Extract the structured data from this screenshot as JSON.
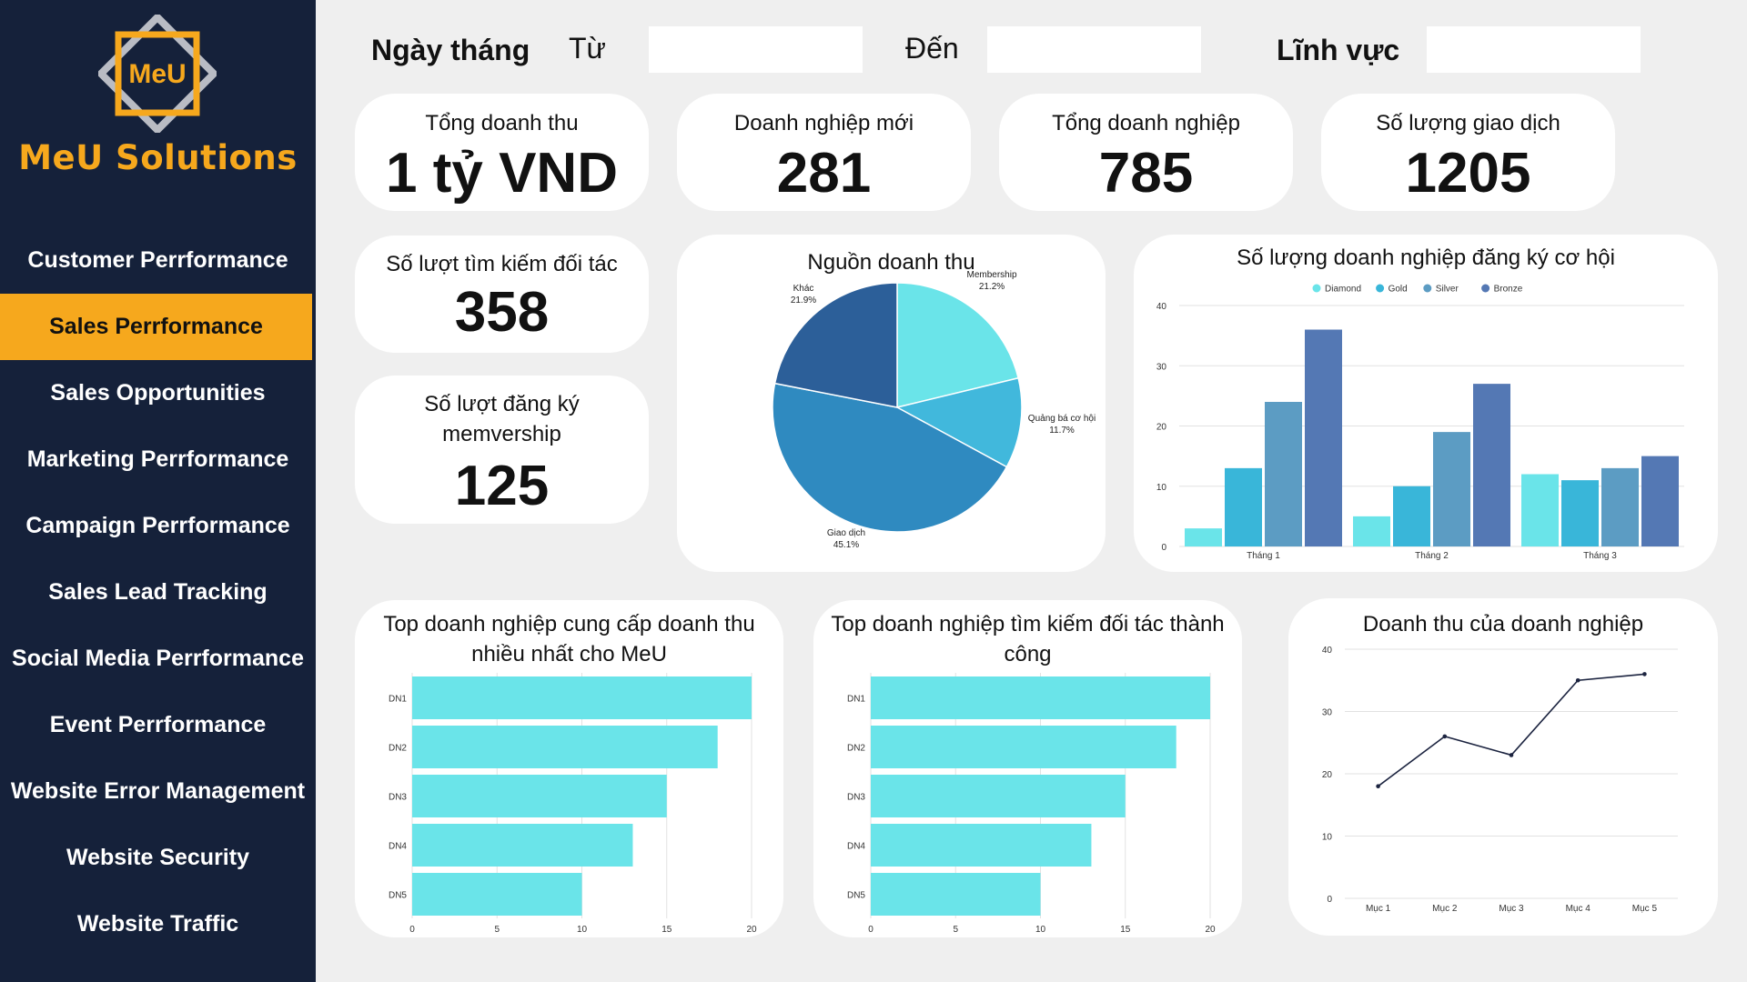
{
  "brand": {
    "name": "MeU Solutions",
    "logo_text": "MeU"
  },
  "nav": {
    "items": [
      "Customer Perrformance",
      "Sales Perrformance",
      "Sales Opportunities",
      "Marketing Perrformance",
      "Campaign Perrformance",
      "Sales Lead Tracking",
      "Social Media Perrformance",
      "Event Perrformance",
      "Website Error Management",
      "Website Security",
      "Website Traffic"
    ],
    "active_index": 1
  },
  "filters": {
    "date_label": "Ngày tháng",
    "from_label": "Từ",
    "from_value": "",
    "to_label": "Đến",
    "to_value": "",
    "field_label": "Lĩnh vực",
    "field_value": ""
  },
  "kpis": {
    "total_revenue": {
      "label": "Tổng doanh thu",
      "value": "1 tỷ VND"
    },
    "new_business": {
      "label": "Doanh nghiệp mới",
      "value": "281"
    },
    "total_business": {
      "label": "Tổng doanh nghiệp",
      "value": "785"
    },
    "transactions": {
      "label": "Số lượng giao dịch",
      "value": "1205"
    },
    "partner_searches": {
      "label": "Số lượt tìm kiếm đối tác",
      "value": "358"
    },
    "membership_signups": {
      "label_line1": "Số lượt đăng ký",
      "label_line2": "memvership",
      "value": "125"
    }
  },
  "colors": {
    "sidebar": "#15213a",
    "accent": "#f6a81d",
    "cyan": "#6ae4e9",
    "diamond": "#6ae4e9",
    "gold": "#39b6d9",
    "silver": "#5c9cc3",
    "bronze": "#5478b4"
  },
  "chart_data": [
    {
      "type": "pie",
      "title": "Nguồn doanh thu",
      "slices": [
        {
          "label": "Membership",
          "value": 21.2,
          "display": "21.2%",
          "color": "#6ae4e9"
        },
        {
          "label": "Quảng bá cơ hội",
          "value": 11.7,
          "display": "11.7%",
          "color": "#41b8dc"
        },
        {
          "label": "Giao dịch",
          "value": 45.1,
          "display": "45.1%",
          "color": "#2f8ac0"
        },
        {
          "label": "Khác",
          "value": 21.9,
          "display": "21.9%",
          "color": "#2c5f99"
        }
      ]
    },
    {
      "type": "bar",
      "title": "Số lượng doanh nghiệp đăng ký cơ hội",
      "categories": [
        "Tháng 1",
        "Tháng 2",
        "Tháng 3"
      ],
      "series": [
        {
          "name": "Diamond",
          "values": [
            3,
            5,
            12
          ]
        },
        {
          "name": "Gold",
          "values": [
            13,
            10,
            11
          ]
        },
        {
          "name": "Silver",
          "values": [
            24,
            19,
            13
          ]
        },
        {
          "name": "Bronze",
          "values": [
            36,
            27,
            15
          ]
        }
      ],
      "ylim": [
        0,
        40
      ],
      "yticks": [
        "0",
        "10",
        "20",
        "30",
        "40"
      ],
      "grid": true,
      "legend": "top"
    },
    {
      "type": "bar",
      "orientation": "horizontal",
      "title": "Top doanh nghiệp cung cấp doanh thu nhiều nhất cho MeU",
      "title_line1": "Top doanh nghiệp cung cấp doanh thu",
      "title_line2": "nhiều nhất cho MeU",
      "categories": [
        "DN1",
        "DN2",
        "DN3",
        "DN4",
        "DN5"
      ],
      "values": [
        20,
        18,
        15,
        13,
        10
      ],
      "xlim": [
        0,
        20
      ],
      "xticks": [
        "0",
        "5",
        "10",
        "15",
        "20"
      ]
    },
    {
      "type": "bar",
      "orientation": "horizontal",
      "title": "Top doanh nghiệp tìm kiếm đối tác thành công",
      "title_line1": "Top doanh nghiệp tìm kiếm đối tác thành",
      "title_line2": "công",
      "categories": [
        "DN1",
        "DN2",
        "DN3",
        "DN4",
        "DN5"
      ],
      "values": [
        20,
        18,
        15,
        13,
        10
      ],
      "xlim": [
        0,
        20
      ],
      "xticks": [
        "0",
        "5",
        "10",
        "15",
        "20"
      ]
    },
    {
      "type": "line",
      "title": "Doanh thu của doanh nghiệp",
      "x": [
        "Mục 1",
        "Mục 2",
        "Mục 3",
        "Mục 4",
        "Mục 5"
      ],
      "y": [
        18,
        26,
        23,
        35,
        36
      ],
      "ylim": [
        0,
        40
      ],
      "yticks": [
        "0",
        "10",
        "20",
        "30",
        "40"
      ],
      "grid": true
    }
  ]
}
